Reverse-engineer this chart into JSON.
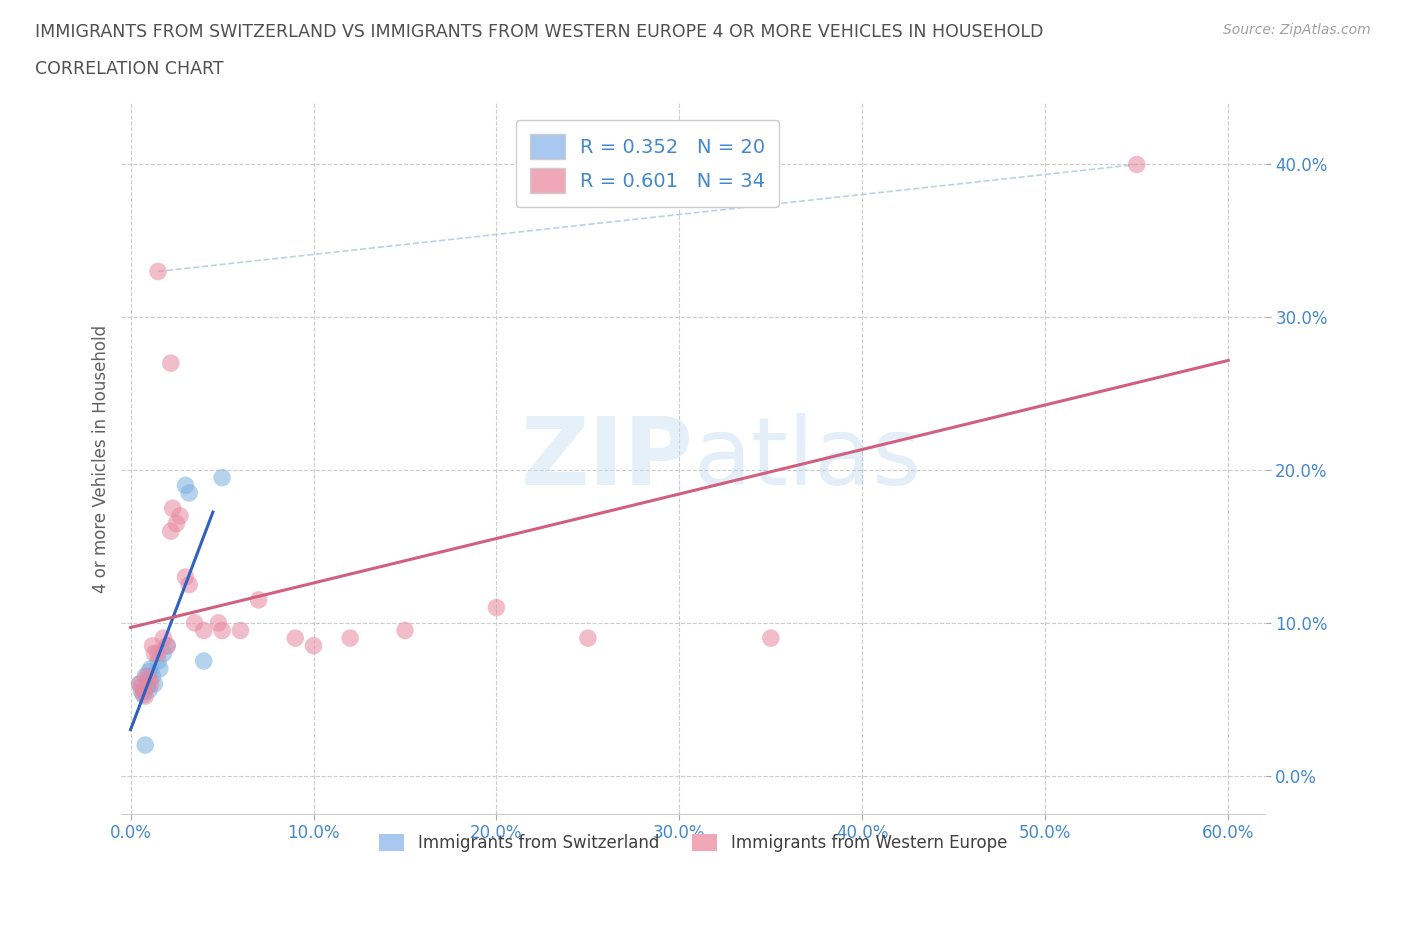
{
  "title_line1": "IMMIGRANTS FROM SWITZERLAND VS IMMIGRANTS FROM WESTERN EUROPE 4 OR MORE VEHICLES IN HOUSEHOLD",
  "title_line2": "CORRELATION CHART",
  "source": "Source: ZipAtlas.com",
  "ylabel": "4 or more Vehicles in Household",
  "xlim": [
    -0.005,
    0.62
  ],
  "ylim": [
    -0.025,
    0.44
  ],
  "xticks": [
    0.0,
    0.1,
    0.2,
    0.3,
    0.4,
    0.5,
    0.6
  ],
  "xticklabels": [
    "0.0%",
    "10.0%",
    "20.0%",
    "30.0%",
    "40.0%",
    "50.0%",
    "60.0%"
  ],
  "yticks": [
    0.0,
    0.1,
    0.2,
    0.3,
    0.4
  ],
  "yticklabels": [
    "0.0%",
    "10.0%",
    "20.0%",
    "30.0%",
    "40.0%"
  ],
  "watermark_zip": "ZIP",
  "watermark_atlas": "atlas",
  "legend_top": [
    {
      "label": "R = 0.352   N = 20",
      "color": "#a8c8f0"
    },
    {
      "label": "R = 0.601   N = 34",
      "color": "#f0a8b8"
    }
  ],
  "legend_bottom": [
    {
      "label": "Immigrants from Switzerland",
      "color": "#a8c8f0"
    },
    {
      "label": "Immigrants from Western Europe",
      "color": "#f0a8b8"
    }
  ],
  "switzerland_points": [
    [
      0.005,
      0.06
    ],
    [
      0.006,
      0.055
    ],
    [
      0.007,
      0.053
    ],
    [
      0.008,
      0.065
    ],
    [
      0.009,
      0.058
    ],
    [
      0.01,
      0.062
    ],
    [
      0.01,
      0.068
    ],
    [
      0.01,
      0.056
    ],
    [
      0.011,
      0.07
    ],
    [
      0.012,
      0.065
    ],
    [
      0.013,
      0.06
    ],
    [
      0.015,
      0.075
    ],
    [
      0.016,
      0.07
    ],
    [
      0.018,
      0.08
    ],
    [
      0.02,
      0.085
    ],
    [
      0.03,
      0.19
    ],
    [
      0.032,
      0.185
    ],
    [
      0.04,
      0.075
    ],
    [
      0.05,
      0.195
    ],
    [
      0.008,
      0.02
    ]
  ],
  "switzerland_color": "#7ab0e0",
  "switzerland_line_color": "#3060c0",
  "western_europe_points": [
    [
      0.005,
      0.06
    ],
    [
      0.006,
      0.058
    ],
    [
      0.007,
      0.055
    ],
    [
      0.008,
      0.052
    ],
    [
      0.009,
      0.065
    ],
    [
      0.01,
      0.063
    ],
    [
      0.011,
      0.06
    ],
    [
      0.012,
      0.085
    ],
    [
      0.013,
      0.08
    ],
    [
      0.015,
      0.08
    ],
    [
      0.018,
      0.09
    ],
    [
      0.02,
      0.085
    ],
    [
      0.022,
      0.16
    ],
    [
      0.023,
      0.175
    ],
    [
      0.025,
      0.165
    ],
    [
      0.027,
      0.17
    ],
    [
      0.03,
      0.13
    ],
    [
      0.032,
      0.125
    ],
    [
      0.035,
      0.1
    ],
    [
      0.04,
      0.095
    ],
    [
      0.048,
      0.1
    ],
    [
      0.05,
      0.095
    ],
    [
      0.06,
      0.095
    ],
    [
      0.07,
      0.115
    ],
    [
      0.09,
      0.09
    ],
    [
      0.1,
      0.085
    ],
    [
      0.12,
      0.09
    ],
    [
      0.15,
      0.095
    ],
    [
      0.2,
      0.11
    ],
    [
      0.25,
      0.09
    ],
    [
      0.35,
      0.09
    ],
    [
      0.55,
      0.4
    ],
    [
      0.015,
      0.33
    ],
    [
      0.022,
      0.27
    ]
  ],
  "western_europe_color": "#e888a0",
  "western_europe_line_color": "#d06080",
  "dashed_line": [
    [
      0.015,
      0.33
    ],
    [
      0.55,
      0.4
    ]
  ],
  "dashed_line_color": "#b0c4de",
  "grid_color": "#cccccc",
  "bg_color": "#ffffff",
  "title_color": "#505050",
  "axis_label_color": "#606060",
  "tick_color": "#4488cc"
}
